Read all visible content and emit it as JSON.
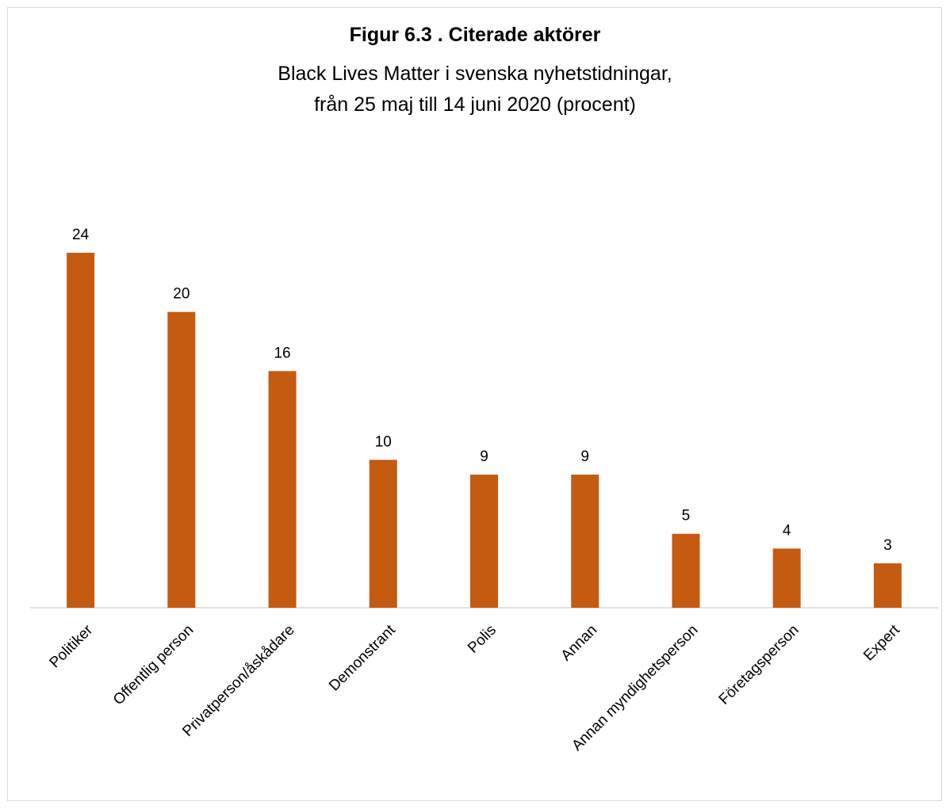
{
  "chart_data": {
    "type": "bar",
    "title": "Figur 6.3 . Citerade aktörer",
    "subtitle_lines": [
      "Black Lives Matter i svenska nyhetstidningar,",
      "från 25 maj till 14 juni 2020 (procent)"
    ],
    "categories": [
      "Politiker",
      "Offentlig person",
      "Privatperson/åskådare",
      "Demonstrant",
      "Polis",
      "Annan",
      "Annan myndighetsperson",
      "Företagsperson",
      "Expert"
    ],
    "values": [
      24,
      20,
      16,
      10,
      9,
      9,
      5,
      4,
      3
    ],
    "data_labels": [
      "24",
      "20",
      "16",
      "10",
      "9",
      "9",
      "5",
      "4",
      "3"
    ],
    "ylim": [
      0,
      24
    ],
    "grid": false,
    "legend": "none",
    "bar_color": "#c55a11"
  }
}
